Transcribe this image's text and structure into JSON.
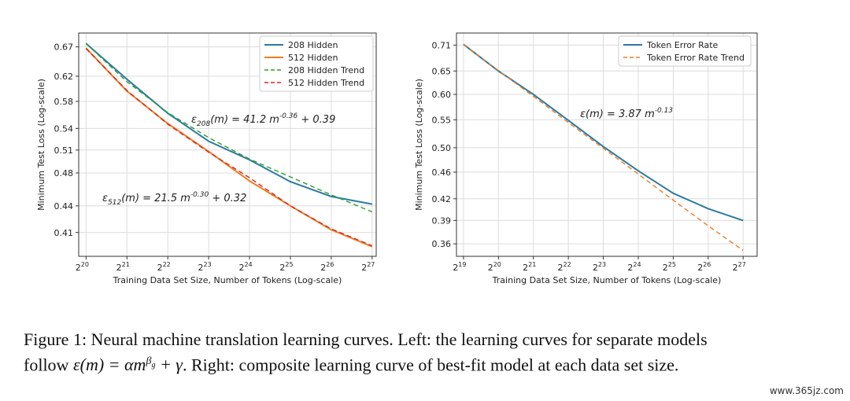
{
  "chart_data": [
    {
      "type": "line",
      "xscale": "log2",
      "yscale": "log",
      "xlabel": "Training Data Set Size, Number of Tokens (Log-scale)",
      "ylabel": "Minimum Test Loss (Log-scale)",
      "x_ticks": [
        {
          "base": "2",
          "exp": "20"
        },
        {
          "base": "2",
          "exp": "21"
        },
        {
          "base": "2",
          "exp": "22"
        },
        {
          "base": "2",
          "exp": "23"
        },
        {
          "base": "2",
          "exp": "24"
        },
        {
          "base": "2",
          "exp": "25"
        },
        {
          "base": "2",
          "exp": "26"
        },
        {
          "base": "2",
          "exp": "27"
        }
      ],
      "y_ticks": [
        "0.67",
        "0.62",
        "0.58",
        "0.54",
        "0.51",
        "0.48",
        "0.44",
        "0.41"
      ],
      "xlim": [
        19.82,
        27.1
      ],
      "ylim": [
        0.385,
        0.695
      ],
      "legend_position": "top-right",
      "grid": true,
      "x": [
        20,
        21,
        22,
        23,
        24,
        25,
        26,
        27
      ],
      "series": [
        {
          "name": "208 Hidden",
          "color": "#2a7aa0",
          "dash": "",
          "values": [
            0.676,
            0.615,
            0.562,
            0.522,
            0.497,
            0.469,
            0.451,
            0.442
          ]
        },
        {
          "name": "512 Hidden",
          "color": "#f07c20",
          "dash": "",
          "values": [
            0.668,
            0.596,
            0.547,
            0.508,
            0.47,
            0.44,
            0.413,
            0.395
          ]
        },
        {
          "name": "208 Hidden Trend",
          "color": "#2ca02c",
          "dash": "6,4",
          "values": [
            0.676,
            0.611,
            0.563,
            0.527,
            0.498,
            0.475,
            0.453,
            0.433
          ]
        },
        {
          "name": "512 Hidden Trend",
          "color": "#d62728",
          "dash": "6,4",
          "values": [
            0.667,
            0.597,
            0.546,
            0.507,
            0.474,
            0.44,
            0.414,
            0.396
          ]
        }
      ],
      "equations": [
        {
          "main": "ε",
          "sub": "208",
          "mid": "(m) = 41.2 m",
          "sup": "-0.36",
          "tail": " + 0.39"
        },
        {
          "main": "ε",
          "sub": "512",
          "mid": "(m) = 21.5 m",
          "sup": "-0.30",
          "tail": " + 0.32"
        }
      ]
    },
    {
      "type": "line",
      "xscale": "log2",
      "yscale": "log",
      "xlabel": "Training Data Set Size, Number of Tokens (Log-scale)",
      "ylabel": "Minimum Test Loss (Log-scale)",
      "x_ticks": [
        {
          "base": "2",
          "exp": "19"
        },
        {
          "base": "2",
          "exp": "20"
        },
        {
          "base": "2",
          "exp": "21"
        },
        {
          "base": "2",
          "exp": "22"
        },
        {
          "base": "2",
          "exp": "23"
        },
        {
          "base": "2",
          "exp": "24"
        },
        {
          "base": "2",
          "exp": "25"
        },
        {
          "base": "2",
          "exp": "26"
        },
        {
          "base": "2",
          "exp": "27"
        }
      ],
      "y_ticks": [
        "0.71",
        "0.65",
        "0.60",
        "0.55",
        "0.50",
        "0.46",
        "0.42",
        "0.39",
        "0.36"
      ],
      "xlim": [
        18.8,
        27.4
      ],
      "ylim": [
        0.345,
        0.74
      ],
      "legend_position": "top-right",
      "grid": true,
      "x": [
        19,
        20,
        21,
        22,
        23,
        24,
        25,
        26,
        27
      ],
      "series": [
        {
          "name": "Token Error Rate",
          "color": "#2a7aa0",
          "dash": "",
          "values": [
            0.712,
            0.65,
            0.6,
            0.549,
            0.502,
            0.462,
            0.428,
            0.406,
            0.39
          ]
        },
        {
          "name": "Token Error Rate Trend",
          "color": "#f07c20",
          "dash": "6,4",
          "values": [
            0.712,
            0.651,
            0.596,
            0.545,
            0.499,
            0.457,
            0.418,
            0.383,
            0.352
          ]
        }
      ],
      "equations": [
        {
          "main": "ε",
          "sub": "",
          "mid": "(m) = 3.87 m",
          "sup": "-0.13",
          "tail": ""
        }
      ]
    }
  ],
  "caption": {
    "line1": "Figure 1: Neural machine translation learning curves. Left: the learning curves for separate models",
    "line2_a": "follow ",
    "line2_formula_a": "ε(m) = αm",
    "line2_formula_sup": "β",
    "line2_formula_subsup": "g",
    "line2_formula_b": " + γ",
    "line2_b": ". Right: composite learning curve of best-fit model at each data set size."
  },
  "watermark": "www.365jz.com"
}
